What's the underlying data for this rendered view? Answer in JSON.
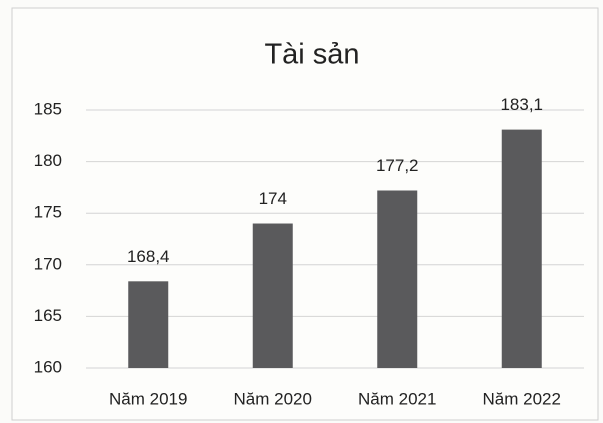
{
  "chart_data": {
    "type": "bar",
    "title": "Tài sản",
    "categories": [
      "Năm 2019",
      "Năm 2020",
      "Năm 2021",
      "Năm 2022"
    ],
    "values": [
      168.4,
      174,
      177.2,
      183.1
    ],
    "value_labels": [
      "168,4",
      "174",
      "177,2",
      "183,1"
    ],
    "color": "#5a5a5c",
    "ylim": [
      160,
      185
    ],
    "yticks": [
      160,
      165,
      170,
      175,
      180,
      185
    ],
    "grid": true
  }
}
